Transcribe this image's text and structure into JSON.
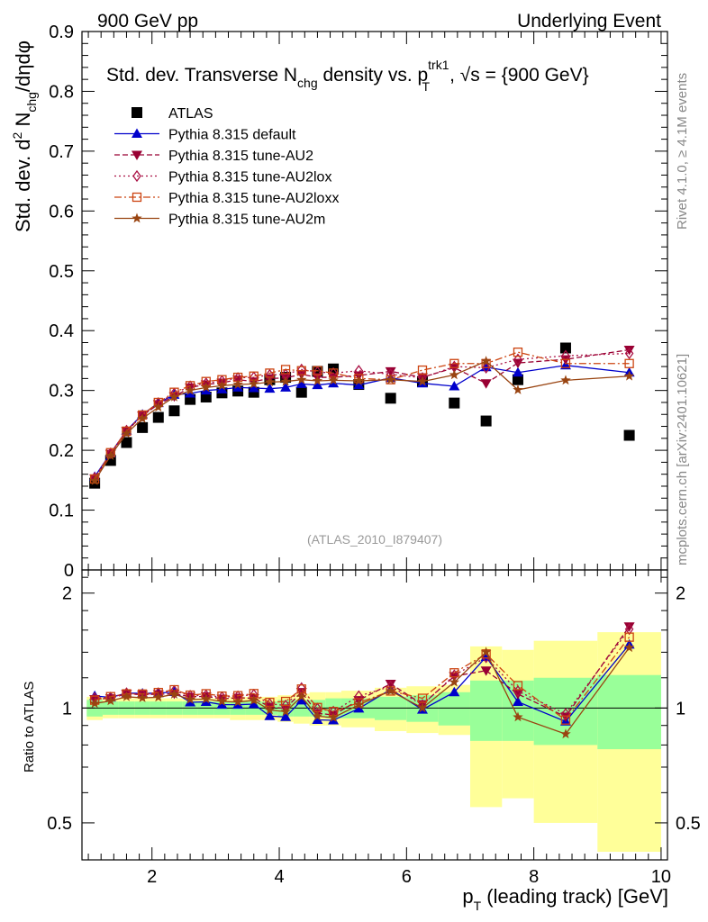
{
  "header": {
    "left": "900 GeV pp",
    "right": "Underlying Event",
    "side_top": "Rivet 4.1.0, ≥ 4.1M events",
    "side_bottom": "mcplots.cern.ch [arXiv:2401.10621]"
  },
  "chart_data": {
    "type": "scatter",
    "title": {
      "prefix": "Std. dev. Transverse N",
      "sub": "chg",
      "mid": " density vs. p",
      "sup2": "trk1",
      "sub2": "T",
      "suffix": ", √s = {900 GeV}"
    },
    "ylabel": {
      "a": "Std. dev. d",
      "sup": "2",
      "b": " N",
      "sub": "chg",
      "c": "/dηdφ"
    },
    "ratio_ylabel": "Ratio to ATLAS",
    "xlabel": {
      "a": "p",
      "sub": "T",
      "b": " (leading track) [GeV]"
    },
    "watermark": "(ATLAS_2010_I879407)",
    "xlim": [
      0.9,
      10.1
    ],
    "ylim": [
      0,
      0.9
    ],
    "ratio_ylim": [
      0.4,
      2.3
    ],
    "x_ticks": [
      "2",
      "4",
      "6",
      "8",
      "10"
    ],
    "y_ticks": [
      "0",
      "0.1",
      "0.2",
      "0.3",
      "0.4",
      "0.5",
      "0.6",
      "0.7",
      "0.8",
      "0.9"
    ],
    "ratio_ticks": [
      "0.5",
      "1",
      "2"
    ],
    "x": [
      1.1,
      1.35,
      1.6,
      1.85,
      2.1,
      2.35,
      2.6,
      2.85,
      3.1,
      3.35,
      3.6,
      3.85,
      4.1,
      4.35,
      4.6,
      4.85,
      5.25,
      5.75,
      6.25,
      6.75,
      7.25,
      7.75,
      8.5,
      9.5
    ],
    "bins": [
      0.975,
      1.225,
      1.475,
      1.725,
      1.975,
      2.225,
      2.475,
      2.725,
      2.975,
      3.225,
      3.475,
      3.725,
      3.975,
      4.225,
      4.475,
      4.725,
      4.975,
      5.5,
      6,
      6.5,
      7,
      7.5,
      8,
      9,
      10
    ],
    "band_inner": [
      0.05,
      0.04,
      0.04,
      0.04,
      0.04,
      0.04,
      0.04,
      0.04,
      0.04,
      0.04,
      0.04,
      0.04,
      0.05,
      0.05,
      0.05,
      0.06,
      0.06,
      0.07,
      0.08,
      0.1,
      0.18,
      0.18,
      0.2,
      0.22
    ],
    "band_outer": [
      0.07,
      0.06,
      0.06,
      0.06,
      0.06,
      0.06,
      0.06,
      0.06,
      0.06,
      0.07,
      0.07,
      0.07,
      0.08,
      0.09,
      0.1,
      0.1,
      0.11,
      0.13,
      0.14,
      0.15,
      0.45,
      0.42,
      0.5,
      0.58
    ],
    "series": [
      {
        "name": "ATLAS",
        "color": "#000000",
        "marker": "square",
        "line": "none",
        "values": [
          0.145,
          0.183,
          0.213,
          0.238,
          0.255,
          0.266,
          0.285,
          0.289,
          0.296,
          0.299,
          0.297,
          0.318,
          0.322,
          0.297,
          0.332,
          0.336,
          0.31,
          0.287,
          0.315,
          0.279,
          0.249,
          0.318,
          0.371,
          0.225
        ]
      },
      {
        "name": "Pythia 8.315 default",
        "color": "#0000cc",
        "marker": "triangle",
        "line": "solid",
        "values": [
          0.156,
          0.195,
          0.233,
          0.26,
          0.279,
          0.293,
          0.295,
          0.3,
          0.302,
          0.305,
          0.304,
          0.303,
          0.305,
          0.311,
          0.309,
          0.312,
          0.309,
          0.321,
          0.312,
          0.307,
          0.339,
          0.33,
          0.342,
          0.33
        ]
      },
      {
        "name": "Pythia 8.315 tune-AU2",
        "color": "#990033",
        "marker": "triangle-down",
        "line": "dashed",
        "values": [
          0.153,
          0.194,
          0.232,
          0.258,
          0.277,
          0.29,
          0.305,
          0.31,
          0.313,
          0.318,
          0.315,
          0.32,
          0.321,
          0.327,
          0.322,
          0.322,
          0.325,
          0.332,
          0.322,
          0.338,
          0.312,
          0.346,
          0.352,
          0.368
        ]
      },
      {
        "name": "Pythia 8.315 tune-AU2lox",
        "color": "#aa1144",
        "marker": "diamond",
        "line": "dotted",
        "values": [
          0.154,
          0.195,
          0.233,
          0.258,
          0.279,
          0.295,
          0.307,
          0.312,
          0.316,
          0.321,
          0.322,
          0.326,
          0.327,
          0.335,
          0.331,
          0.329,
          0.333,
          0.327,
          0.321,
          0.34,
          0.338,
          0.352,
          0.358,
          0.362
        ]
      },
      {
        "name": "Pythia 8.315 tune-AU2loxx",
        "color": "#cc4411",
        "marker": "open-square",
        "line": "dashdot",
        "values": [
          0.152,
          0.196,
          0.232,
          0.259,
          0.28,
          0.297,
          0.308,
          0.315,
          0.318,
          0.322,
          0.324,
          0.329,
          0.335,
          0.333,
          0.333,
          0.329,
          0.32,
          0.318,
          0.334,
          0.345,
          0.345,
          0.364,
          0.345,
          0.345
        ]
      },
      {
        "name": "Pythia 8.315 tune-AU2m",
        "color": "#994411",
        "marker": "star",
        "line": "solid",
        "values": [
          0.149,
          0.191,
          0.228,
          0.253,
          0.272,
          0.289,
          0.3,
          0.305,
          0.308,
          0.31,
          0.311,
          0.314,
          0.315,
          0.318,
          0.316,
          0.317,
          0.316,
          0.318,
          0.315,
          0.326,
          0.349,
          0.301,
          0.317,
          0.324
        ]
      }
    ]
  }
}
